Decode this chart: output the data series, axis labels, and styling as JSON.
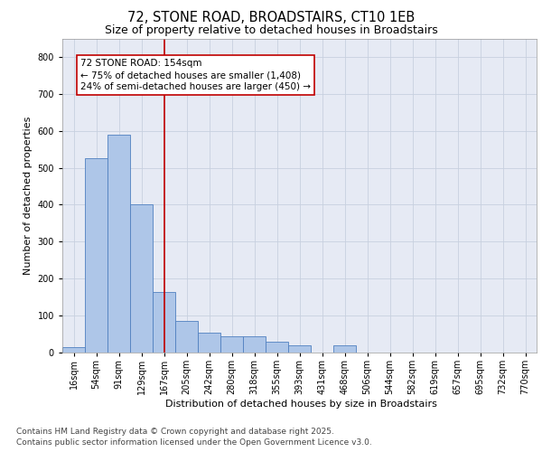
{
  "title_line1": "72, STONE ROAD, BROADSTAIRS, CT10 1EB",
  "title_line2": "Size of property relative to detached houses in Broadstairs",
  "xlabel": "Distribution of detached houses by size in Broadstairs",
  "ylabel": "Number of detached properties",
  "categories": [
    "16sqm",
    "54sqm",
    "91sqm",
    "129sqm",
    "167sqm",
    "205sqm",
    "242sqm",
    "280sqm",
    "318sqm",
    "355sqm",
    "393sqm",
    "431sqm",
    "468sqm",
    "506sqm",
    "544sqm",
    "582sqm",
    "619sqm",
    "657sqm",
    "695sqm",
    "732sqm",
    "770sqm"
  ],
  "values": [
    15,
    525,
    590,
    400,
    165,
    85,
    55,
    45,
    45,
    30,
    20,
    0,
    20,
    0,
    0,
    0,
    0,
    0,
    0,
    0,
    0
  ],
  "bar_color": "#aec6e8",
  "bar_edge_color": "#5080c0",
  "vline_x_index": 4,
  "vline_color": "#c00000",
  "annotation_text": "72 STONE ROAD: 154sqm\n← 75% of detached houses are smaller (1,408)\n24% of semi-detached houses are larger (450) →",
  "annotation_box_color": "#c00000",
  "annotation_text_color": "#000000",
  "ylim": [
    0,
    850
  ],
  "yticks": [
    0,
    100,
    200,
    300,
    400,
    500,
    600,
    700,
    800
  ],
  "grid_color": "#c8d0df",
  "background_color": "#e6eaf4",
  "footer_line1": "Contains HM Land Registry data © Crown copyright and database right 2025.",
  "footer_line2": "Contains public sector information licensed under the Open Government Licence v3.0.",
  "title_fontsize": 10.5,
  "subtitle_fontsize": 9,
  "axis_label_fontsize": 8,
  "tick_fontsize": 7,
  "footer_fontsize": 6.5,
  "annotation_fontsize": 7.5
}
